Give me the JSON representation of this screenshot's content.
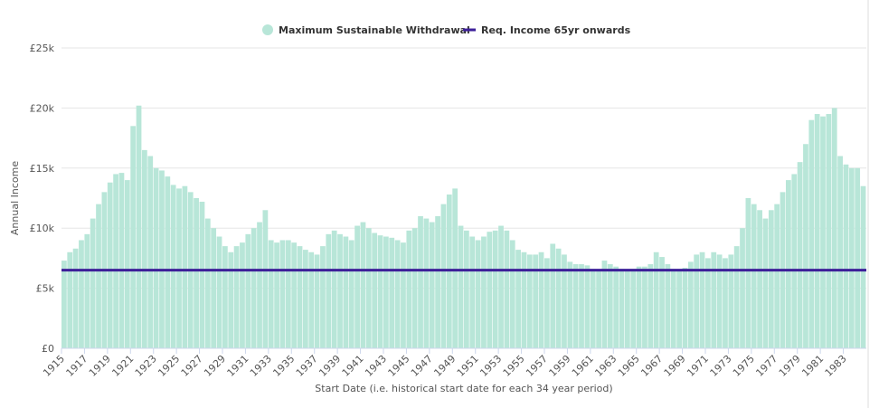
{
  "chart_data": {
    "type": "bar",
    "x_label": "Start Date (i.e. historical start date for each 34 year period)",
    "y_label": "Annual Income",
    "x": [
      1915,
      1915.5,
      1916,
      1916.5,
      1917,
      1917.5,
      1918,
      1918.5,
      1919,
      1919.5,
      1920,
      1920.5,
      1921,
      1921.5,
      1922,
      1922.5,
      1923,
      1923.5,
      1924,
      1924.5,
      1925,
      1925.5,
      1926,
      1926.5,
      1927,
      1927.5,
      1928,
      1928.5,
      1929,
      1929.5,
      1930,
      1930.5,
      1931,
      1931.5,
      1932,
      1932.5,
      1933,
      1933.5,
      1934,
      1934.5,
      1935,
      1935.5,
      1936,
      1936.5,
      1937,
      1937.5,
      1938,
      1938.5,
      1939,
      1939.5,
      1940,
      1940.5,
      1941,
      1941.5,
      1942,
      1942.5,
      1943,
      1943.5,
      1944,
      1944.5,
      1945,
      1945.5,
      1946,
      1946.5,
      1947,
      1947.5,
      1948,
      1948.5,
      1949,
      1949.5,
      1950,
      1950.5,
      1951,
      1951.5,
      1952,
      1952.5,
      1953,
      1953.5,
      1954,
      1954.5,
      1955,
      1955.5,
      1956,
      1956.5,
      1957,
      1957.5,
      1958,
      1958.5,
      1959,
      1959.5,
      1960,
      1960.5,
      1961,
      1961.5,
      1962,
      1962.5,
      1963,
      1963.5,
      1964,
      1964.5,
      1965,
      1965.5,
      1966,
      1966.5,
      1967,
      1967.5,
      1968,
      1968.5,
      1969,
      1969.5,
      1970,
      1970.5,
      1971,
      1971.5,
      1972,
      1972.5,
      1973,
      1973.5,
      1974,
      1974.5,
      1975,
      1975.5,
      1976,
      1976.5,
      1977,
      1977.5,
      1978,
      1978.5,
      1979,
      1979.5,
      1980,
      1980.5,
      1981,
      1981.5,
      1982,
      1982.5,
      1983,
      1983.5,
      1984,
      1984.5
    ],
    "series": [
      {
        "name": "Maximum Sustainable Withdrawal",
        "color": "#b8e6d8",
        "values": [
          7300,
          8000,
          8300,
          9000,
          9500,
          10800,
          12000,
          13000,
          13800,
          14500,
          14600,
          14000,
          18500,
          20200,
          16500,
          16000,
          15000,
          14800,
          14300,
          13600,
          13300,
          13500,
          13000,
          12500,
          12200,
          10800,
          10000,
          9300,
          8500,
          8000,
          8500,
          8800,
          9500,
          10000,
          10500,
          11500,
          9000,
          8800,
          9000,
          9000,
          8800,
          8500,
          8200,
          8000,
          7800,
          8500,
          9500,
          9800,
          9500,
          9300,
          9000,
          10200,
          10500,
          10000,
          9600,
          9400,
          9300,
          9200,
          9000,
          8800,
          9800,
          10000,
          11000,
          10800,
          10500,
          11000,
          12000,
          12800,
          13300,
          10200,
          9800,
          9300,
          9000,
          9300,
          9700,
          9800,
          10200,
          9800,
          9000,
          8200,
          8000,
          7800,
          7800,
          8000,
          7500,
          8700,
          8300,
          7800,
          7200,
          7000,
          7000,
          6900,
          6600,
          6500,
          7300,
          7000,
          6800,
          6600,
          6500,
          6600,
          6800,
          6800,
          7000,
          8000,
          7600,
          7000,
          6600,
          6400,
          6700,
          7200,
          7800,
          8000,
          7500,
          8000,
          7800,
          7500,
          7800,
          8500,
          10000,
          12500,
          12000,
          11500,
          10800,
          11500,
          12000,
          13000,
          14000,
          14500,
          15500,
          17000,
          19000,
          19500,
          19300,
          19500,
          20000,
          16000,
          15300,
          15000,
          15000,
          13500
        ]
      }
    ],
    "reference_line": {
      "name": "Req. Income 65yr onwards",
      "value": 6500,
      "color": "#3d1f99"
    },
    "xlim": [
      1915,
      1985
    ],
    "xticks": [
      1915,
      1917,
      1919,
      1921,
      1923,
      1925,
      1927,
      1929,
      1931,
      1933,
      1935,
      1937,
      1939,
      1941,
      1943,
      1945,
      1947,
      1949,
      1951,
      1953,
      1955,
      1957,
      1959,
      1961,
      1963,
      1965,
      1967,
      1969,
      1971,
      1973,
      1975,
      1977,
      1979,
      1981,
      1983
    ],
    "ylim": [
      0,
      25000
    ],
    "yticks": [
      {
        "value": 0,
        "label": "£0"
      },
      {
        "value": 5000,
        "label": "£5k"
      },
      {
        "value": 10000,
        "label": "£10k"
      },
      {
        "value": 15000,
        "label": "£15k"
      },
      {
        "value": 20000,
        "label": "£20k"
      },
      {
        "value": 25000,
        "label": "£25k"
      }
    ],
    "grid": true,
    "legend": "top"
  }
}
